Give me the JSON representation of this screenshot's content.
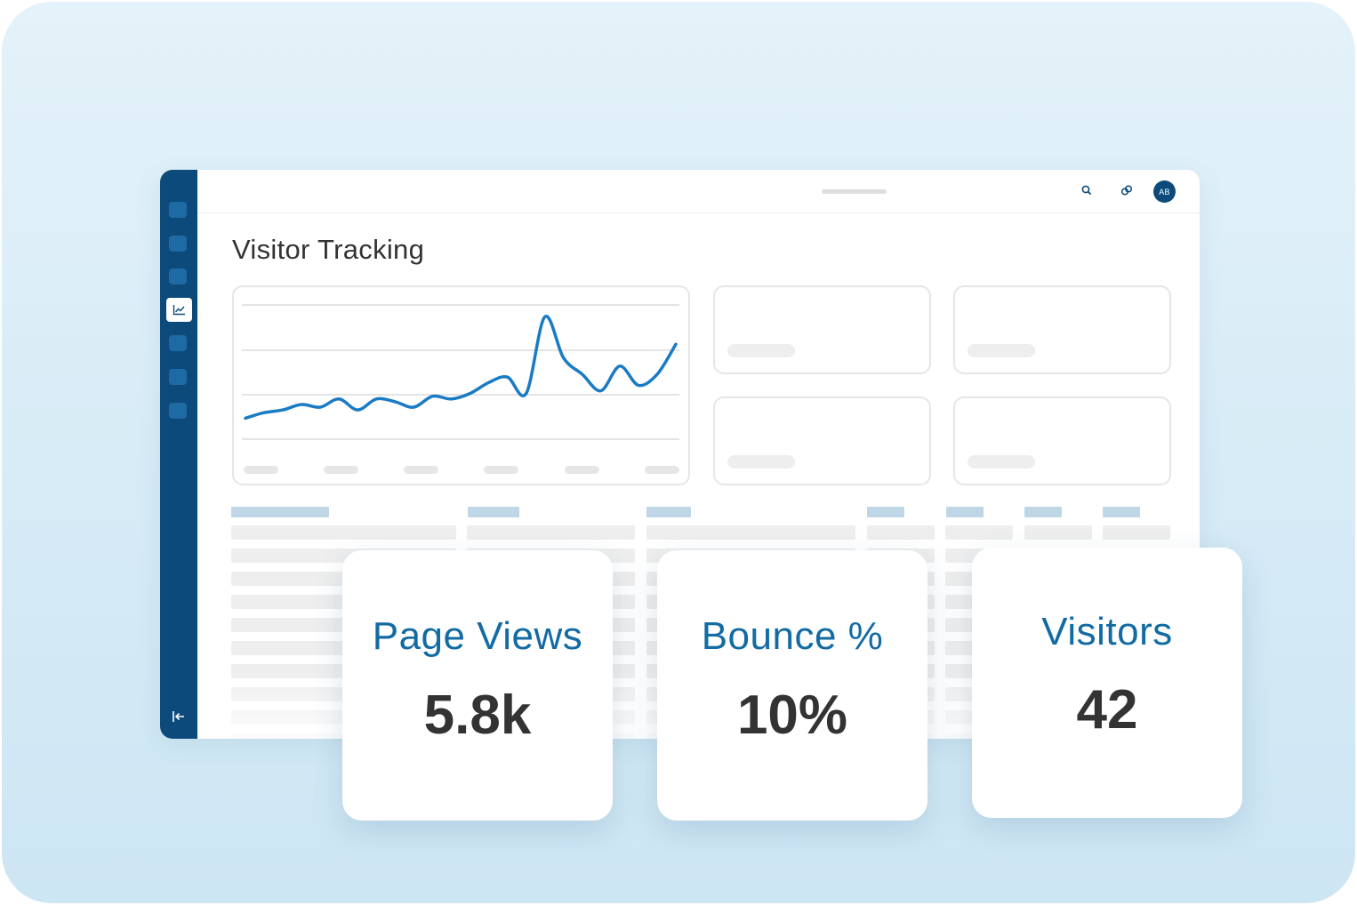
{
  "page": {
    "title": "Visitor Tracking"
  },
  "header": {
    "user_initials": "AB"
  },
  "colors": {
    "rail": "#0b4a7a",
    "accent": "#126ba3",
    "chart_line": "#1a7bc5"
  },
  "icons": {
    "search": "search-icon",
    "link": "link-icon",
    "analytics": "line-chart-icon",
    "collapse": "collapse-sidebar-icon"
  },
  "chart_data": {
    "type": "line",
    "title": "",
    "xlabel": "",
    "ylabel": "",
    "grid": true,
    "series": [
      {
        "values": [
          8,
          10,
          11,
          13,
          12,
          15,
          11,
          15,
          14,
          12,
          16,
          15,
          17,
          21,
          23,
          17,
          45,
          30,
          24,
          18,
          27,
          20,
          24,
          35
        ]
      }
    ]
  },
  "stats": [
    {
      "label": "Page Views",
      "value": "5.8k"
    },
    {
      "label": "Bounce %",
      "value": "10%"
    },
    {
      "label": "Visitors",
      "value": "42"
    }
  ]
}
